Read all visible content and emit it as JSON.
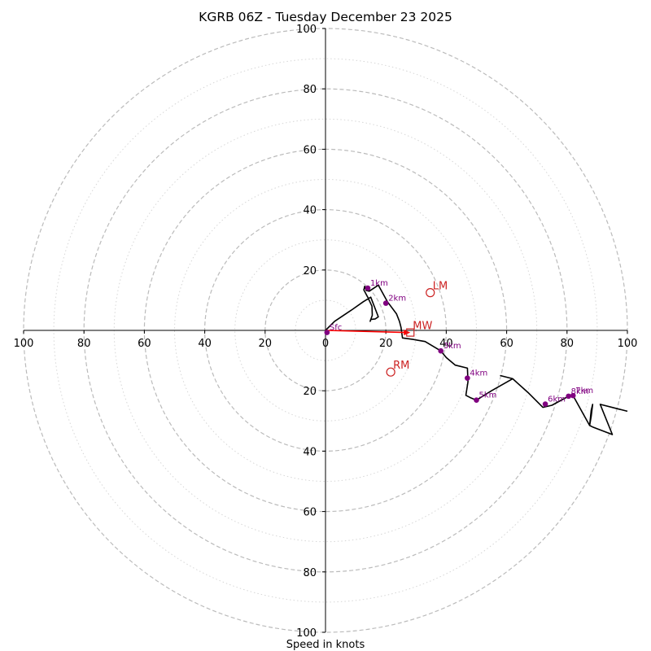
{
  "chart_data": {
    "type": "hodograph",
    "title": "KGRB 06Z - Tuesday December 23 2025",
    "xlabel": "Speed in knots",
    "ring_max": 100,
    "major_rings": [
      20,
      40,
      60,
      80,
      100
    ],
    "minor_rings": [
      10,
      30,
      50,
      70,
      90
    ],
    "tick_values": [
      20,
      40,
      60,
      80,
      100
    ],
    "x_ticks": [
      "100",
      "80",
      "60",
      "40",
      "20",
      "0",
      "20",
      "40",
      "60",
      "80",
      "100"
    ],
    "y_ticks": [
      "100",
      "80",
      "60",
      "40",
      "20",
      "20",
      "40",
      "60",
      "80",
      "100"
    ],
    "hodograph_line": [
      [
        0,
        0
      ],
      [
        3,
        3
      ],
      [
        6,
        5
      ],
      [
        9,
        7
      ],
      [
        12.5,
        9.5
      ],
      [
        15,
        11
      ],
      [
        17.5,
        4.5
      ],
      [
        16.5,
        3.8
      ],
      [
        15,
        3.6
      ],
      [
        14.8,
        3
      ],
      [
        15.5,
        5
      ],
      [
        15.4,
        8
      ],
      [
        14,
        11
      ],
      [
        12.7,
        13.4
      ],
      [
        13,
        14.6
      ],
      [
        13.5,
        13.2
      ],
      [
        14.5,
        13
      ],
      [
        17.5,
        15
      ],
      [
        20.5,
        9.5
      ],
      [
        23.5,
        5.5
      ],
      [
        24.5,
        3
      ],
      [
        25,
        1
      ],
      [
        25.5,
        -2.5
      ],
      [
        29,
        -3
      ],
      [
        33,
        -3.7
      ],
      [
        38.2,
        -6.8
      ],
      [
        40,
        -9
      ],
      [
        43,
        -11.5
      ],
      [
        47,
        -12.5
      ],
      [
        47.2,
        -17
      ],
      [
        46.5,
        -21.5
      ],
      [
        48,
        -22.3
      ],
      [
        50,
        -23.1
      ],
      [
        55,
        -20
      ],
      [
        62,
        -16
      ],
      [
        58,
        -15
      ],
      [
        62,
        -16
      ],
      [
        67,
        -20.5
      ],
      [
        72,
        -25.5
      ],
      [
        75,
        -24.8
      ],
      [
        80.5,
        -21.8
      ],
      [
        81.5,
        -21.6
      ],
      [
        82,
        -21.6
      ],
      [
        87.5,
        -31.5
      ],
      [
        88,
        -26.5
      ],
      [
        88.5,
        -24.5
      ],
      [
        88,
        -28.5
      ],
      [
        87.5,
        -31.5
      ],
      [
        88.5,
        -32
      ],
      [
        95,
        -34.5
      ],
      [
        92,
        -27
      ],
      [
        91,
        -24.5
      ],
      [
        100,
        -26.8
      ]
    ],
    "height_points": [
      {
        "label": "Sfc",
        "u": 0.5,
        "v": -0.7
      },
      {
        "label": "1km",
        "u": 14,
        "v": 14
      },
      {
        "label": "2km",
        "u": 20,
        "v": 9
      },
      {
        "label": "3km",
        "u": 38.2,
        "v": -6.8
      },
      {
        "label": "4km",
        "u": 47,
        "v": -15.8
      },
      {
        "label": "5km",
        "u": 50,
        "v": -23.1
      },
      {
        "label": "6km",
        "u": 72.8,
        "v": -24.4
      },
      {
        "label": "8km",
        "u": 80.5,
        "v": -21.8
      },
      {
        "label": "7km",
        "u": 82,
        "v": -21.6
      }
    ],
    "storm_motions": [
      {
        "label": "LM",
        "u": 34.7,
        "v": 12.5,
        "marker": "circle"
      },
      {
        "label": "RM",
        "u": 21.6,
        "v": -13.8,
        "marker": "circle"
      },
      {
        "label": "MW",
        "u": 28.1,
        "v": -0.7,
        "marker": "square"
      }
    ],
    "mean_wind_arrow": {
      "from": [
        0,
        0
      ],
      "to": [
        28.1,
        -0.7
      ]
    },
    "colors": {
      "hodograph": "#000000",
      "height_point": "#800080",
      "storm": "#cc2222",
      "arrow": "#ff0000",
      "major_ring": "#bbbbbb",
      "minor_ring": "#d6d6d6"
    }
  }
}
